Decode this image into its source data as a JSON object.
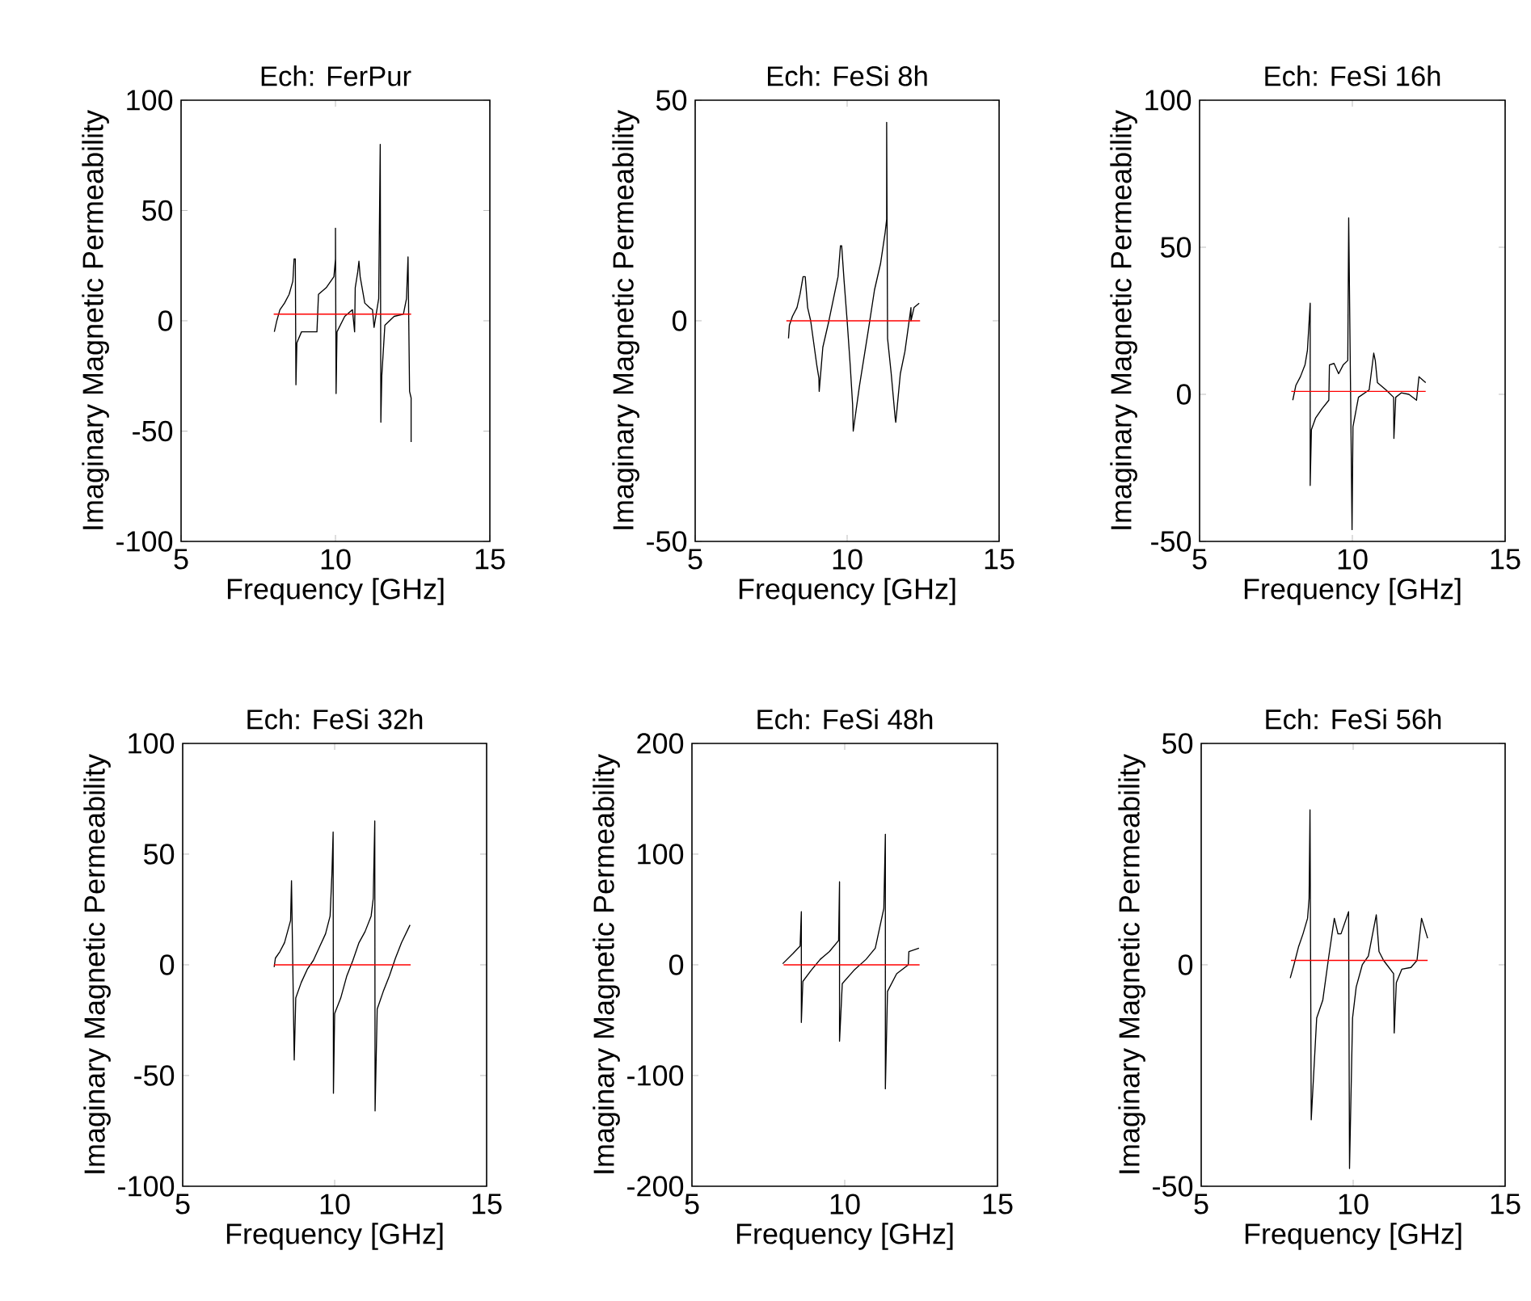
{
  "chart_data": [
    {
      "type": "line",
      "title": "Ech: FerPur",
      "xlabel": "Frequency [GHz]",
      "ylabel": "Imaginary Magnetic Permeability",
      "xlim": [
        5,
        15
      ],
      "xticks": [
        5,
        10,
        15
      ],
      "ylim": [
        -100,
        100
      ],
      "yticks": [
        -100,
        -50,
        0,
        50,
        100
      ],
      "series": [
        {
          "color": "#000000",
          "x": [
            8.02,
            8.1,
            8.2,
            8.35,
            8.5,
            8.62,
            8.66,
            8.7,
            8.72,
            8.75,
            8.9,
            9.1,
            9.4,
            9.45,
            9.7,
            9.95,
            10.0,
            10.0,
            10.02,
            10.05,
            10.3,
            10.55,
            10.62,
            10.64,
            10.72,
            10.76,
            10.8,
            10.95,
            11.1,
            11.2,
            11.25,
            11.4,
            11.45,
            11.47,
            11.5,
            11.6,
            11.75,
            11.9,
            12.2,
            12.3,
            12.35,
            12.4,
            12.45,
            12.45
          ],
          "values": [
            -5,
            0,
            5,
            8,
            12,
            18,
            28,
            28,
            -29,
            -10,
            -5,
            -5,
            -5,
            12,
            15,
            20,
            28,
            42,
            -33,
            -5,
            2,
            5,
            -5,
            15,
            22,
            27,
            20,
            8,
            6,
            5,
            -3,
            10,
            80,
            -46,
            -25,
            -2,
            0,
            2,
            3,
            10,
            29,
            -32,
            -35,
            -55
          ]
        },
        {
          "color": "#ff0000",
          "x": [
            8.0,
            12.45
          ],
          "values": [
            3,
            3
          ]
        }
      ]
    },
    {
      "type": "line",
      "title": "Ech: FeSi 8h",
      "xlabel": "Frequency [GHz]",
      "ylabel": "Imaginary Magnetic Permeability",
      "xlim": [
        5,
        15
      ],
      "xticks": [
        5,
        10,
        15
      ],
      "ylim": [
        -50,
        50
      ],
      "yticks": [
        -50,
        0,
        50
      ],
      "series": [
        {
          "color": "#000000",
          "x": [
            8.07,
            8.1,
            8.2,
            8.35,
            8.45,
            8.55,
            8.62,
            8.7,
            8.8,
            8.9,
            9.0,
            9.07,
            9.08,
            9.2,
            9.4,
            9.55,
            9.7,
            9.78,
            9.82,
            9.9,
            10.0,
            10.1,
            10.18,
            10.2,
            10.4,
            10.7,
            10.9,
            11.1,
            11.25,
            11.3,
            11.3,
            11.33,
            11.45,
            11.58,
            11.6,
            11.75,
            11.9,
            12.1,
            12.1,
            12.2,
            12.37
          ],
          "values": [
            -4,
            -1,
            1,
            3,
            6,
            10,
            10,
            3,
            0,
            -5,
            -10,
            -13,
            -16,
            -6,
            0,
            5,
            10,
            17,
            17,
            9,
            0,
            -10,
            -19,
            -25,
            -15,
            -2,
            7,
            13,
            20,
            23,
            45,
            -4,
            -12,
            -22,
            -23,
            -12,
            -7,
            3,
            0,
            3,
            4
          ]
        },
        {
          "color": "#ff0000",
          "x": [
            8.0,
            12.4
          ],
          "values": [
            0,
            0
          ]
        }
      ]
    },
    {
      "type": "line",
      "title": "Ech: FeSi 16h",
      "xlabel": "Frequency [GHz]",
      "ylabel": "Imaginary Magnetic Permeability",
      "xlim": [
        5,
        15
      ],
      "xticks": [
        5,
        10,
        15
      ],
      "ylim": [
        -50,
        100
      ],
      "yticks": [
        -50,
        0,
        50,
        100
      ],
      "series": [
        {
          "color": "#000000",
          "x": [
            8.05,
            8.15,
            8.3,
            8.45,
            8.53,
            8.62,
            8.62,
            8.66,
            8.8,
            9.0,
            9.23,
            9.25,
            9.4,
            9.55,
            9.7,
            9.85,
            9.88,
            9.99,
            10.02,
            10.2,
            10.55,
            10.7,
            10.75,
            10.82,
            11.1,
            11.35,
            11.36,
            11.42,
            11.6,
            11.85,
            12.1,
            12.18,
            12.4
          ],
          "values": [
            -2,
            3,
            6,
            10,
            15,
            31,
            -31,
            -12,
            -8,
            -5,
            -2,
            10,
            10.5,
            7,
            10,
            11.5,
            60,
            -46,
            -11,
            -1,
            1.5,
            14,
            11.5,
            4,
            1.5,
            -1,
            -15,
            -1,
            0.5,
            0,
            -2,
            6,
            4
          ]
        },
        {
          "color": "#ff0000",
          "x": [
            8.0,
            12.4
          ],
          "values": [
            1,
            1
          ]
        }
      ]
    },
    {
      "type": "line",
      "title": "Ech: FeSi 32h",
      "xlabel": "Frequency [GHz]",
      "ylabel": "Imaginary Magnetic Permeability",
      "xlim": [
        5,
        15
      ],
      "xticks": [
        5,
        10,
        15
      ],
      "ylim": [
        -100,
        100
      ],
      "yticks": [
        -100,
        -50,
        0,
        50,
        100
      ],
      "series": [
        {
          "color": "#000000",
          "x": [
            8.01,
            8.05,
            8.2,
            8.35,
            8.45,
            8.55,
            8.58,
            8.67,
            8.72,
            8.9,
            9.1,
            9.3,
            9.5,
            9.7,
            9.85,
            9.91,
            9.95,
            9.96,
            10.0,
            10.2,
            10.4,
            10.6,
            10.8,
            11.0,
            11.2,
            11.27,
            11.32,
            11.33,
            11.4,
            11.6,
            11.8,
            12.0,
            12.2,
            12.48
          ],
          "values": [
            -1,
            3,
            6,
            10,
            15,
            20,
            38,
            -43,
            -15,
            -8,
            -2,
            2,
            8,
            14,
            22,
            41,
            60,
            -58,
            -22,
            -15,
            -5,
            2,
            10,
            15,
            22,
            30,
            65,
            -66,
            -20,
            -12,
            -5,
            3,
            10,
            18
          ]
        },
        {
          "color": "#ff0000",
          "x": [
            8.0,
            12.5
          ],
          "values": [
            0,
            0
          ]
        }
      ]
    },
    {
      "type": "line",
      "title": "Ech: FeSi 48h",
      "xlabel": "Frequency [GHz]",
      "ylabel": "Imaginary Magnetic Permeability",
      "xlim": [
        5,
        15
      ],
      "xticks": [
        5,
        10,
        15
      ],
      "ylim": [
        -200,
        200
      ],
      "yticks": [
        -200,
        -100,
        0,
        100,
        200
      ],
      "series": [
        {
          "color": "#000000",
          "x": [
            7.97,
            8.3,
            8.54,
            8.58,
            8.58,
            8.63,
            8.9,
            9.2,
            9.5,
            9.8,
            9.83,
            9.83,
            9.92,
            10.3,
            10.7,
            11.0,
            11.28,
            11.33,
            11.33,
            11.4,
            11.7,
            12.08,
            12.1,
            12.43
          ],
          "values": [
            1,
            10,
            17,
            48,
            -52,
            -15,
            -5,
            5,
            12,
            22,
            75,
            -69,
            -17,
            -5,
            5,
            15,
            51,
            118,
            -112,
            -24,
            -8,
            0,
            12,
            15
          ]
        },
        {
          "color": "#ff0000",
          "x": [
            8.0,
            12.45
          ],
          "values": [
            0,
            0
          ]
        }
      ]
    },
    {
      "type": "line",
      "title": "Ech: FeSi 56h",
      "xlabel": "Frequency [GHz]",
      "ylabel": "Imaginary Magnetic Permeability",
      "xlim": [
        5,
        15
      ],
      "xticks": [
        5,
        10,
        15
      ],
      "ylim": [
        -50,
        50
      ],
      "yticks": [
        -50,
        0,
        50
      ],
      "series": [
        {
          "color": "#000000",
          "x": [
            7.93,
            8.05,
            8.2,
            8.35,
            8.5,
            8.55,
            8.58,
            8.62,
            8.8,
            9.0,
            9.2,
            9.38,
            9.5,
            9.6,
            9.85,
            9.88,
            9.98,
            10.1,
            10.3,
            10.5,
            10.76,
            10.85,
            11.0,
            11.33,
            11.35,
            11.42,
            11.6,
            11.9,
            12.1,
            12.25,
            12.45
          ],
          "values": [
            -3,
            0,
            4,
            7,
            10.5,
            15,
            35,
            -35,
            -12,
            -8,
            2,
            10.5,
            7,
            7,
            12,
            -46,
            -12,
            -5,
            0,
            2,
            11.3,
            3,
            1,
            -2,
            -15.4,
            -4,
            -1,
            -0.6,
            1,
            10.5,
            6
          ]
        },
        {
          "color": "#ff0000",
          "x": [
            7.95,
            12.45
          ],
          "values": [
            1,
            1
          ]
        }
      ]
    }
  ]
}
